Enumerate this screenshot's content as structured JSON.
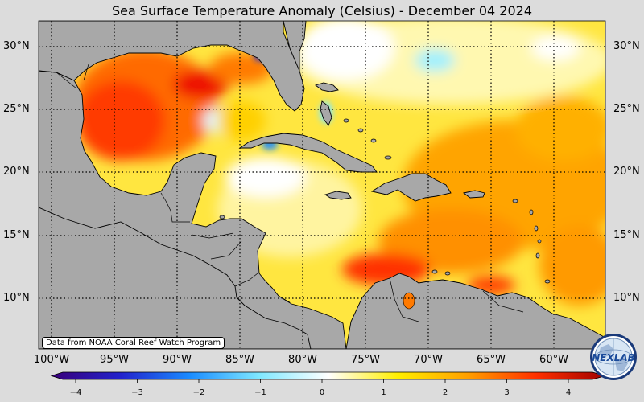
{
  "title": "Sea Surface Temperature Anomaly (Celsius) - December 04 2024",
  "lat_labels": [
    "30°N",
    "25°N",
    "20°N",
    "15°N",
    "10°N"
  ],
  "lon_labels": [
    "100°W",
    "95°W",
    "90°W",
    "85°W",
    "80°W",
    "75°W",
    "70°W",
    "65°W",
    "60°W"
  ],
  "credit": "Data from NOAA Coral Reef Watch Program",
  "colorbar": {
    "ticks": [
      "−4",
      "−3",
      "−2",
      "−1",
      "0",
      "1",
      "2",
      "3",
      "4"
    ],
    "min": -4,
    "max": 4,
    "colors": [
      "#3a007a",
      "#2222cc",
      "#1a8cff",
      "#7fe8ff",
      "#ffffff",
      "#ffee00",
      "#ffa000",
      "#ff3000",
      "#a00000"
    ]
  },
  "logo": {
    "text": "NEXLAB",
    "icon": "nexlab-globe-logo"
  },
  "land_color": "#a8a8a8",
  "background_color": "#dcdcdc"
}
